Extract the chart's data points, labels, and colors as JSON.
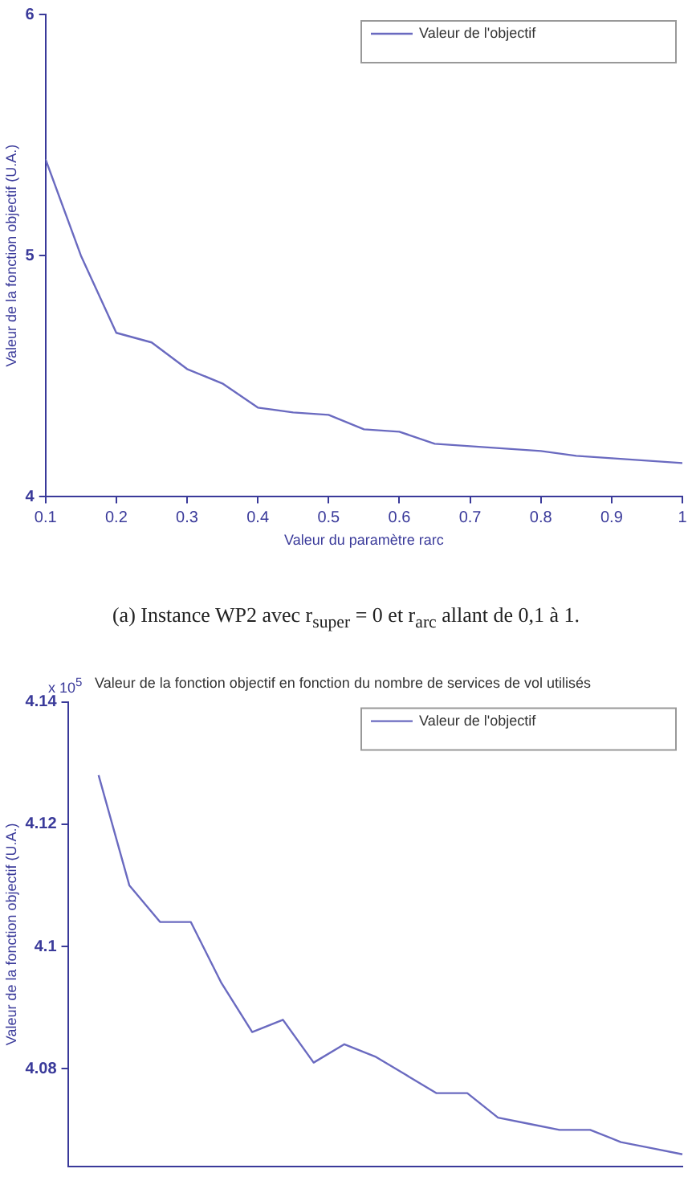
{
  "chart_data": [
    {
      "type": "line",
      "xlabel": "Valeur du paramètre rarc",
      "ylabel": "Valeur de la fonction objectif (U.A.)",
      "x": [
        0.1,
        0.15,
        0.2,
        0.25,
        0.3,
        0.35,
        0.4,
        0.45,
        0.5,
        0.55,
        0.6,
        0.65,
        0.7,
        0.75,
        0.8,
        0.85,
        0.9,
        0.95,
        1
      ],
      "series": [
        {
          "name": "Valeur de l'objectif",
          "color": "#6a6ac0",
          "values": [
            5.4,
            5.0,
            4.68,
            4.64,
            4.53,
            4.47,
            4.37,
            4.35,
            4.34,
            4.28,
            4.27,
            4.22,
            4.21,
            4.2,
            4.19,
            4.17,
            4.16,
            4.15,
            4.14
          ]
        }
      ],
      "xlim": [
        0.1,
        1
      ],
      "xticks": [
        0.1,
        0.2,
        0.3,
        0.4,
        0.5,
        0.6,
        0.7,
        0.8,
        0.9,
        1
      ],
      "ylim": [
        4,
        6
      ],
      "yticks": [
        4,
        5,
        6
      ],
      "grid": false,
      "legend": "top right",
      "marker": "none",
      "line_style": "solid",
      "annotations": [
        "(a) Instance WP2 avec r$_{super}$ = 0 et r$_{arc}$ allant de 0,1 à 1."
      ]
    },
    {
      "type": "line",
      "title": "Valeur de la fonction objectif en fonction du nombre de services de vol utilisés",
      "ylabel": "Valeur de la fonction objectif (U.A.)",
      "categories": [
        null,
        null,
        null,
        null,
        null,
        null,
        null,
        null,
        null,
        null,
        null,
        null,
        null,
        null,
        null,
        null,
        null,
        null,
        null,
        null,
        null
      ],
      "series": [
        {
          "name": "Valeur de l'objectif",
          "color": "#6a6ac0",
          "values": [
            null,
            4.128,
            4.11,
            4.104,
            4.104,
            4.094,
            4.086,
            4.088,
            4.081,
            4.084,
            4.082,
            4.079,
            4.076,
            4.076,
            4.072,
            4.071,
            4.07,
            4.07,
            4.068,
            4.067,
            4.066
          ]
        }
      ],
      "ylim": [
        4.064,
        4.14
      ],
      "yticks": [
        4.08,
        4.1,
        4.12,
        4.14
      ],
      "tick_labels": "y",
      "grid": false,
      "legend": "top right",
      "marker": "none",
      "line_style": "solid",
      "annotations": [
        "x 10$^{5}$"
      ]
    }
  ]
}
